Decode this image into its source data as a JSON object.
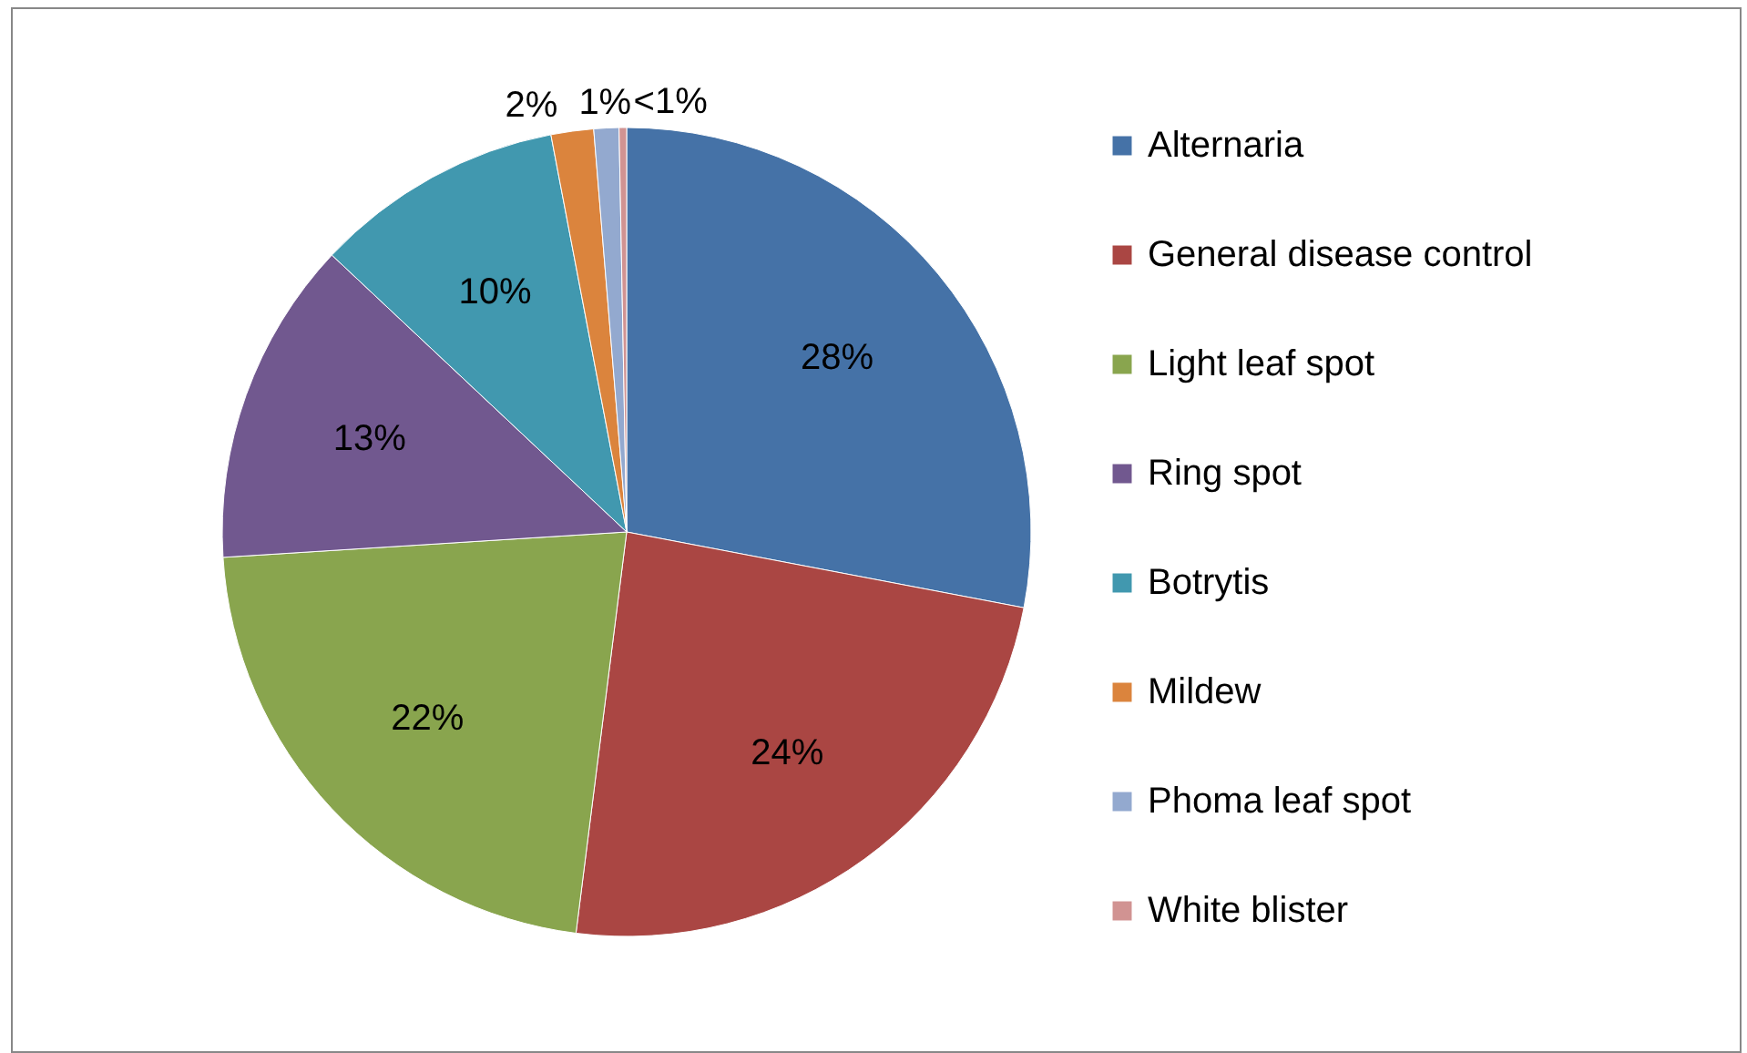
{
  "chart_data": {
    "type": "pie",
    "categories": [
      "Alternaria",
      "General disease control",
      "Light leaf spot",
      "Ring spot",
      "Botrytis",
      "Mildew",
      "Phoma leaf spot",
      "White blister"
    ],
    "values": [
      28,
      24,
      22,
      13,
      10,
      1.7,
      1,
      0.3
    ],
    "value_labels": [
      "28%",
      "24%",
      "22%",
      "13%",
      "10%",
      "2%",
      "1%",
      "<1%"
    ],
    "colors": [
      "#4572a7",
      "#aa4643",
      "#89a54e",
      "#71588f",
      "#4198af",
      "#db843d",
      "#93a9cf",
      "#d19392"
    ],
    "legend": "right"
  }
}
